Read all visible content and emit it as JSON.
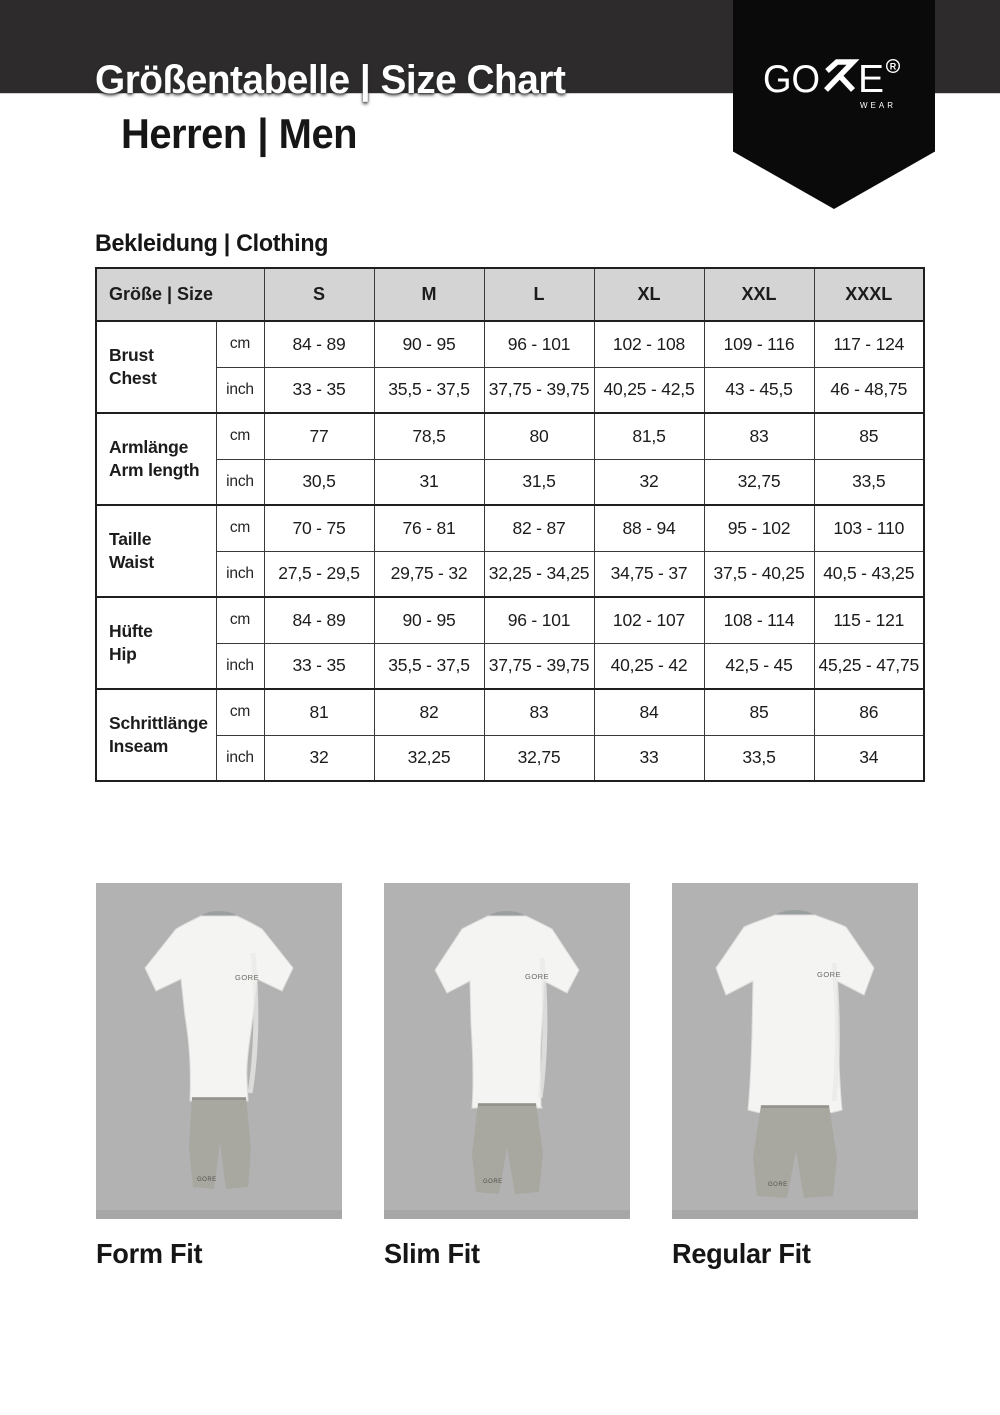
{
  "header": {
    "title": "Größentabelle | Size Chart",
    "subtitle": "Herren | Men",
    "logo": {
      "part1": "GO",
      "part2": "E",
      "reg_letter": "R",
      "sub": "WEAR"
    }
  },
  "section": {
    "heading": "Bekleidung | Clothing"
  },
  "size_table": {
    "corner_label": "Größe | Size",
    "columns": [
      "S",
      "M",
      "L",
      "XL",
      "XXL",
      "XXXL"
    ],
    "rows": [
      {
        "label_de": "Brust",
        "label_en": "Chest",
        "units": [
          {
            "unit": "cm",
            "values": [
              "84 - 89",
              "90 - 95",
              "96 - 101",
              "102 - 108",
              "109 - 116",
              "117 - 124"
            ]
          },
          {
            "unit": "inch",
            "values": [
              "33 - 35",
              "35,5 - 37,5",
              "37,75 - 39,75",
              "40,25 - 42,5",
              "43 - 45,5",
              "46 - 48,75"
            ]
          }
        ]
      },
      {
        "label_de": "Armlänge",
        "label_en": "Arm length",
        "units": [
          {
            "unit": "cm",
            "values": [
              "77",
              "78,5",
              "80",
              "81,5",
              "83",
              "85"
            ]
          },
          {
            "unit": "inch",
            "values": [
              "30,5",
              "31",
              "31,5",
              "32",
              "32,75",
              "33,5"
            ]
          }
        ]
      },
      {
        "label_de": "Taille",
        "label_en": "Waist",
        "units": [
          {
            "unit": "cm",
            "values": [
              "70 - 75",
              "76 - 81",
              "82 - 87",
              "88 - 94",
              "95 - 102",
              "103 - 110"
            ]
          },
          {
            "unit": "inch",
            "values": [
              "27,5 - 29,5",
              "29,75 - 32",
              "32,25 - 34,25",
              "34,75 - 37",
              "37,5 - 40,25",
              "40,5 - 43,25"
            ]
          }
        ]
      },
      {
        "label_de": "Hüfte",
        "label_en": "Hip",
        "units": [
          {
            "unit": "cm",
            "values": [
              "84 - 89",
              "90 - 95",
              "96 - 101",
              "102 - 107",
              "108 - 114",
              "115 - 121"
            ]
          },
          {
            "unit": "inch",
            "values": [
              "33 - 35",
              "35,5 - 37,5",
              "37,75 - 39,75",
              "40,25 - 42",
              "42,5 - 45",
              "45,25 - 47,75"
            ]
          }
        ]
      },
      {
        "label_de": "Schrittlänge",
        "label_en": "Inseam",
        "units": [
          {
            "unit": "cm",
            "values": [
              "81",
              "82",
              "83",
              "84",
              "85",
              "86"
            ]
          },
          {
            "unit": "inch",
            "values": [
              "32",
              "32,25",
              "32,75",
              "33",
              "33,5",
              "34"
            ]
          }
        ]
      }
    ]
  },
  "fits": [
    {
      "label": "Form Fit"
    },
    {
      "label": "Slim Fit"
    },
    {
      "label": "Regular Fit"
    }
  ],
  "product": {
    "chest_logo": "GORE",
    "shorts_logo": "GORE"
  },
  "colors": {
    "band": "#2d2b2b",
    "pennant": "#0a0a0a",
    "table_header_bg": "#d4d4d4",
    "table_border": "#1f1f1f",
    "product_box_bg": "#b2b2b2",
    "shirt": "#f4f4f2",
    "shorts": "#a8a7a0",
    "logo_text": "#ffffff"
  }
}
